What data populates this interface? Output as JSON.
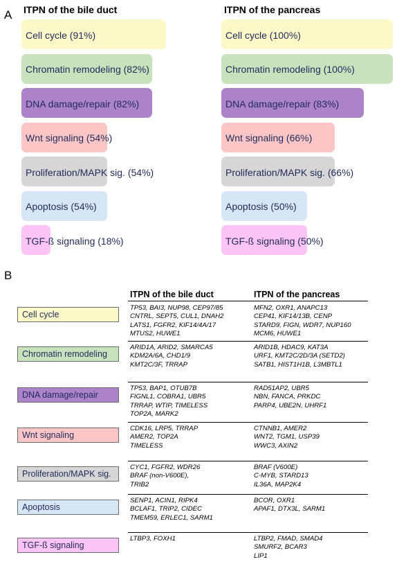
{
  "panel_a": {
    "letter": "A",
    "left_title": "ITPN of the bile duct",
    "right_title": "ITPN of the pancreas"
  },
  "chart_data": [
    {
      "type": "bar",
      "orientation": "horizontal",
      "title": "ITPN of the bile duct",
      "categories": [
        "Cell cycle",
        "Chromatin remodeling",
        "DNA damage/repair",
        "Wnt signaling",
        "Proliferation/MAPK sig.",
        "Apoptosis",
        "TGF-ß signaling"
      ],
      "values": [
        91,
        82,
        82,
        54,
        54,
        54,
        18
      ],
      "labels": [
        "Cell cycle (91%)",
        "Chromatin remodeling (82%)",
        "DNA damage/repair (82%)",
        "Wnt signaling (54%)",
        "Proliferation/MAPK sig. (54%)",
        "Apoptosis (54%)",
        "TGF-ß signaling (18%)"
      ],
      "colors": [
        "#fdf8c8",
        "#c8e2bd",
        "#ac83c8",
        "#fcc6c6",
        "#d6d6d6",
        "#d7e6f5",
        "#fcc4f4"
      ],
      "xlim": [
        0,
        100
      ]
    },
    {
      "type": "bar",
      "orientation": "horizontal",
      "title": "ITPN of the pancreas",
      "categories": [
        "Cell cycle",
        "Chromatin remodeling",
        "DNA damage/repair",
        "Wnt signaling",
        "Proliferation/MAPK sig.",
        "Apoptosis",
        "TGF-ß signaling"
      ],
      "values": [
        100,
        100,
        83,
        66,
        66,
        50,
        50
      ],
      "labels": [
        "Cell cycle (100%)",
        "Chromatin remodeling (100%)",
        "DNA damage/repair (83%)",
        "Wnt signaling (66%)",
        "Proliferation/MAPK sig. (66%)",
        "Apoptosis (50%)",
        "TGF-ß signaling (50%)"
      ],
      "colors": [
        "#fdf8c8",
        "#c8e2bd",
        "#ac83c8",
        "#fcc6c6",
        "#d6d6d6",
        "#d7e6f5",
        "#fcc4f4"
      ],
      "xlim": [
        0,
        100
      ]
    }
  ],
  "panel_b": {
    "letter": "B",
    "col_bile": "ITPN of the bile duct",
    "col_pancreas": "ITPN of the pancreas",
    "rows": [
      {
        "category": "Cell cycle",
        "color": "#fdf8c8",
        "bile": [
          "TP53, BAI3, NUP98, CEP97/85",
          "CNTRL, SEPT5, CUL1, DNAH2",
          "LATS1, FGFR2, KIF14/4A/17",
          "MTUS2, HUWE1"
        ],
        "pancreas": [
          "MFN2, OXR1, ANAPC13",
          "CEP41, KIF14/13B, CENP",
          "STARD9, FIGN, WDR7, NUP160",
          "MCM6, HUWE1"
        ]
      },
      {
        "category": "Chromatin remodeling",
        "color": "#c8e2bd",
        "bile": [
          "ARID1A, ARID2, SMARCA5",
          "KDM2A/6A, CHD1/9",
          "KMT2C/3F, TRRAP"
        ],
        "pancreas": [
          "ARID1B, HDAC9, KAT3A",
          "URF1, KMT2C/2D/3A (SETD2)",
          "SATB1, HIST1H1B, L3MBTL1"
        ]
      },
      {
        "category": "DNA damage/repair",
        "color": "#ac83c8",
        "bile": [
          "TP53, BAP1, OTUB7B",
          "FIGNL1, COBRA1, UBR5",
          "TRRAP, WTIP, TIMELESS",
          "TOP2A, MARK2"
        ],
        "pancreas": [
          "RAD51AP2, UBR5",
          "NBN, FANCA, PRKDC",
          "PARP4, UBE2N, UHRF1"
        ]
      },
      {
        "category": "Wnt signaling",
        "color": "#fcc6c6",
        "bile": [
          "CDK16, LRP5, TRRAP",
          "AMER2, TOP2A",
          "TIMELESS"
        ],
        "pancreas": [
          "CTNNB1, AMER2",
          "WNT2, TGM1, USP39",
          "WWC3, AXIN2"
        ]
      },
      {
        "category": "Proliferation/MAPK sig.",
        "color": "#d6d6d6",
        "bile": [
          "CYC1, FGFR2, WDR26",
          "BRAF (non-V600E),",
          "TRIB2"
        ],
        "pancreas": [
          "BRAF (V600E)",
          "C-MYB, STARD13",
          "IL36A, MAP2K4"
        ]
      },
      {
        "category": "Apoptosis",
        "color": "#d7e6f5",
        "bile": [
          "SENP1, ACIN1, RIPK4",
          "BCLAF1, TRIP2, CIDEC",
          "TMEM59, ERLEC1, SARM1"
        ],
        "pancreas": [
          "BCOR, OXR1",
          "APAF1, DTX3L, SARM1"
        ]
      },
      {
        "category": "TGF-ß signaling",
        "color": "#fcc4f4",
        "bile": [
          "LTBP3, FOXH1"
        ],
        "pancreas": [
          "LTBP2, FMAD, SMAD4",
          "SMURF2, BCAR3",
          "LIP1"
        ]
      }
    ]
  }
}
